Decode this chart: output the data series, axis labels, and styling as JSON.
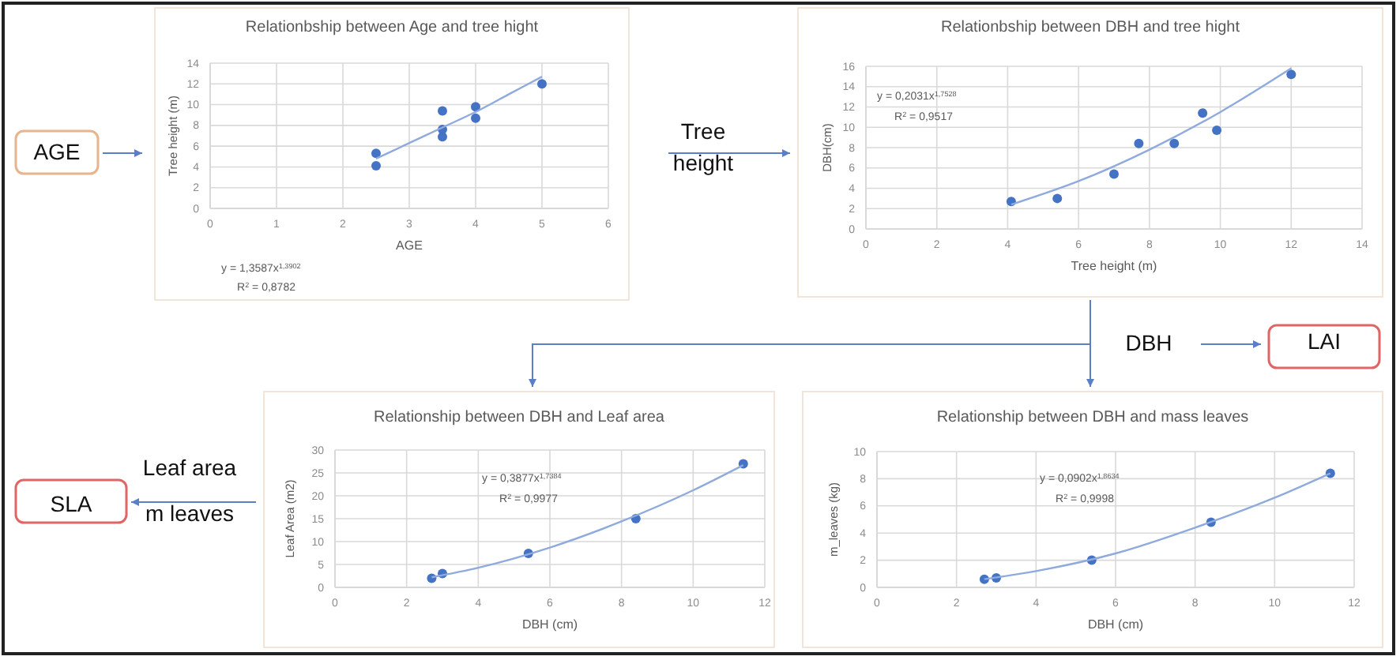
{
  "chart_data": [
    {
      "type": "scatter",
      "title": "Relationbship between Age and tree hight",
      "xlabel": "AGE",
      "ylabel": "Tree height (m)",
      "xlim": [
        0,
        6
      ],
      "xticks": [
        0,
        1,
        2,
        3,
        4,
        5,
        6
      ],
      "ylim": [
        0,
        14
      ],
      "yticks": [
        0,
        2,
        4,
        6,
        8,
        10,
        12,
        14
      ],
      "grid": true,
      "annotations": [
        "y = 1,3587x$^{1,3902}$",
        "R$^{2}$ = 0,8782"
      ],
      "series": [
        {
          "type": "scatter",
          "marker": "circle",
          "color": "#4472c4",
          "x": [
            2.5,
            2.5,
            3.5,
            3.5,
            3.5,
            4,
            4,
            5
          ],
          "values": [
            5.3,
            4.1,
            9.4,
            7.6,
            6.9,
            9.8,
            8.7,
            12
          ]
        },
        {
          "type": "line",
          "marker": "none",
          "color": "#8faadc",
          "x": [
            2.5,
            3,
            3.5,
            4,
            4.5,
            5
          ],
          "values": [
            4.8,
            6.3,
            7.8,
            9.3,
            11,
            12.7
          ]
        }
      ]
    },
    {
      "type": "scatter",
      "title": "Relationbship between DBH and tree hight",
      "xlabel": "Tree height (m)",
      "ylabel": "DBH(cm)",
      "xlim": [
        0,
        14
      ],
      "xticks": [
        0,
        2,
        4,
        6,
        8,
        10,
        12,
        14
      ],
      "ylim": [
        0,
        16
      ],
      "yticks": [
        0,
        2,
        4,
        6,
        8,
        10,
        12,
        14,
        16
      ],
      "grid": true,
      "annotations": [
        "y = 0,2031x$^{1,7528}$",
        "R$^{2}$ = 0,9517"
      ],
      "series": [
        {
          "type": "scatter",
          "marker": "circle",
          "color": "#4472c4",
          "x": [
            4.1,
            5.4,
            7.0,
            7.7,
            8.7,
            9.5,
            9.9,
            12
          ],
          "values": [
            2.7,
            3.0,
            5.4,
            8.4,
            8.4,
            11.4,
            9.7,
            15.2
          ]
        },
        {
          "type": "line",
          "marker": "none",
          "color": "#8faadc",
          "x": [
            4.1,
            6,
            8,
            10,
            12
          ],
          "values": [
            2.4,
            4.7,
            7.8,
            11.5,
            15.8
          ]
        }
      ]
    },
    {
      "type": "scatter",
      "title": "Relationship between DBH and Leaf area",
      "xlabel": "DBH (cm)",
      "ylabel": "Leaf Area (m2)",
      "xlim": [
        0,
        12
      ],
      "xticks": [
        0,
        2,
        4,
        6,
        8,
        10,
        12
      ],
      "ylim": [
        0,
        30
      ],
      "yticks": [
        0,
        5,
        10,
        15,
        20,
        25,
        30
      ],
      "grid": true,
      "annotations": [
        "y = 0,3877x$^{1,7384}$",
        "R$^{2}$ = 0,9977"
      ],
      "series": [
        {
          "type": "scatter",
          "marker": "circle",
          "color": "#4472c4",
          "x": [
            2.7,
            3.0,
            5.4,
            8.4,
            11.4
          ],
          "values": [
            2.0,
            3.0,
            7.4,
            15.0,
            27.0
          ]
        },
        {
          "type": "line",
          "marker": "none",
          "color": "#8faadc",
          "x": [
            2.7,
            4,
            6,
            8,
            10,
            11.4
          ],
          "values": [
            2.2,
            4.3,
            8.7,
            14.4,
            21.2,
            26.7
          ]
        }
      ]
    },
    {
      "type": "scatter",
      "title": "Relationship between DBH and mass leaves",
      "xlabel": "DBH (cm)",
      "ylabel": "m_leaves (kg)",
      "xlim": [
        0,
        12
      ],
      "xticks": [
        0,
        2,
        4,
        6,
        8,
        10,
        12
      ],
      "ylim": [
        0,
        10
      ],
      "yticks": [
        0,
        2,
        4,
        6,
        8,
        10
      ],
      "grid": true,
      "annotations": [
        "y = 0,0902x$^{1,8634}$",
        "R$^{2}$ = 0,9998"
      ],
      "series": [
        {
          "type": "scatter",
          "marker": "circle",
          "color": "#4472c4",
          "x": [
            2.7,
            3.0,
            5.4,
            8.4,
            11.4
          ],
          "values": [
            0.6,
            0.7,
            2.0,
            4.8,
            8.4
          ]
        },
        {
          "type": "line",
          "marker": "none",
          "color": "#8faadc",
          "x": [
            2.7,
            4,
            6,
            8,
            10,
            11.4
          ],
          "values": [
            0.6,
            1.2,
            2.5,
            4.4,
            6.6,
            8.4
          ]
        }
      ]
    },
    {
      "type": "other",
      "annotations": [
        "AGE",
        "Tree height",
        "DBH",
        "LAI",
        "Leaf area",
        "m leaves",
        "SLA"
      ]
    }
  ]
}
